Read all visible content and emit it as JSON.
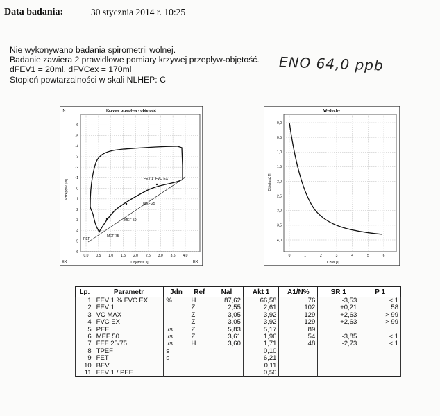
{
  "header": {
    "label": "Data badania:",
    "date": "30 stycznia 2014 r.   10:25"
  },
  "notes": [
    "Nie wykonywano badania spirometrii wolnej.",
    "Badanie zawiera 2 prawidłowe pomiary krzywej przepływ-objętość.",
    "dFEV1 = 20ml, dFVCex = 170ml",
    "Stopień powtarzalności w skali NLHEP: C"
  ],
  "handwritten": "ENO 64,0 ppb",
  "chart_data": [
    {
      "type": "line",
      "title": "Krzywe przepływ - objętość",
      "xlabel": "Objętość [l]",
      "ylabel": "Przepływ [l/s]",
      "corner_labels": {
        "top_left": "IN",
        "bottom_left": "EX",
        "bottom_right": "EX"
      },
      "xlim": [
        0,
        4
      ],
      "ylim": [
        -7,
        6
      ],
      "xticks": [
        "0,0",
        "0,5",
        "1,0",
        "1,5",
        "2,0",
        "2,5",
        "3,0",
        "3,5",
        "4,0"
      ],
      "yticks": [
        "-6",
        "-5",
        "-4",
        "-3",
        "-2",
        "-1",
        "0",
        "1",
        "2",
        "3",
        "4",
        "5",
        "6"
      ],
      "annotations": [
        "FEV 1",
        "FVC EX",
        "MEF 25",
        "MEF 50",
        "MEF 75",
        "PEF"
      ]
    },
    {
      "type": "line",
      "title": "Wydechy",
      "xlabel": "Czas [s]",
      "ylabel": "Objętość [l]",
      "xlim": [
        0,
        6
      ],
      "ylim": [
        0,
        4
      ],
      "xticks": [
        "0",
        "1",
        "2",
        "3",
        "4",
        "5",
        "6"
      ],
      "yticks": [
        "0,0",
        "0,5",
        "1,0",
        "1,5",
        "2,0",
        "2,5",
        "3,0",
        "3,5",
        "4,0"
      ]
    }
  ],
  "table": {
    "headers": [
      "Lp.",
      "Parametr",
      "Jdn",
      "Ref",
      "Nal",
      "Akt 1",
      "A1/N%",
      "SR 1",
      "P 1"
    ],
    "rows": [
      [
        "1",
        "FEV 1 % FVC EX",
        "%",
        "H",
        "87,62",
        "66,58",
        "76",
        "-3,53",
        "< 1"
      ],
      [
        "2",
        "FEV 1",
        "l",
        "Z",
        "2,55",
        "2,61",
        "102",
        "+0,21",
        "58"
      ],
      [
        "3",
        "VC MAX",
        "l",
        "Z",
        "3,05",
        "3,92",
        "129",
        "+2,63",
        "> 99"
      ],
      [
        "4",
        "FVC EX",
        "l",
        "Z",
        "3,05",
        "3,92",
        "129",
        "+2,63",
        "> 99"
      ],
      [
        "5",
        "PEF",
        "l/s",
        "Z",
        "5,83",
        "5,17",
        "89",
        "",
        ""
      ],
      [
        "6",
        "MEF 50",
        "l/s",
        "Z",
        "3,61",
        "1,96",
        "54",
        "-3,85",
        "< 1"
      ],
      [
        "7",
        "FEF 25/75",
        "l/s",
        "H",
        "3,60",
        "1,71",
        "48",
        "-2,73",
        "< 1"
      ],
      [
        "8",
        "TPEF",
        "s",
        "",
        "",
        "0,10",
        "",
        "",
        ""
      ],
      [
        "9",
        "FET",
        "s",
        "",
        "",
        "6,21",
        "",
        "",
        ""
      ],
      [
        "10",
        "BEV",
        "l",
        "",
        "",
        "0,11",
        "",
        "",
        ""
      ],
      [
        "11",
        "FEV 1 / PEF",
        "",
        "",
        "",
        "0,50",
        "",
        "",
        ""
      ]
    ]
  }
}
